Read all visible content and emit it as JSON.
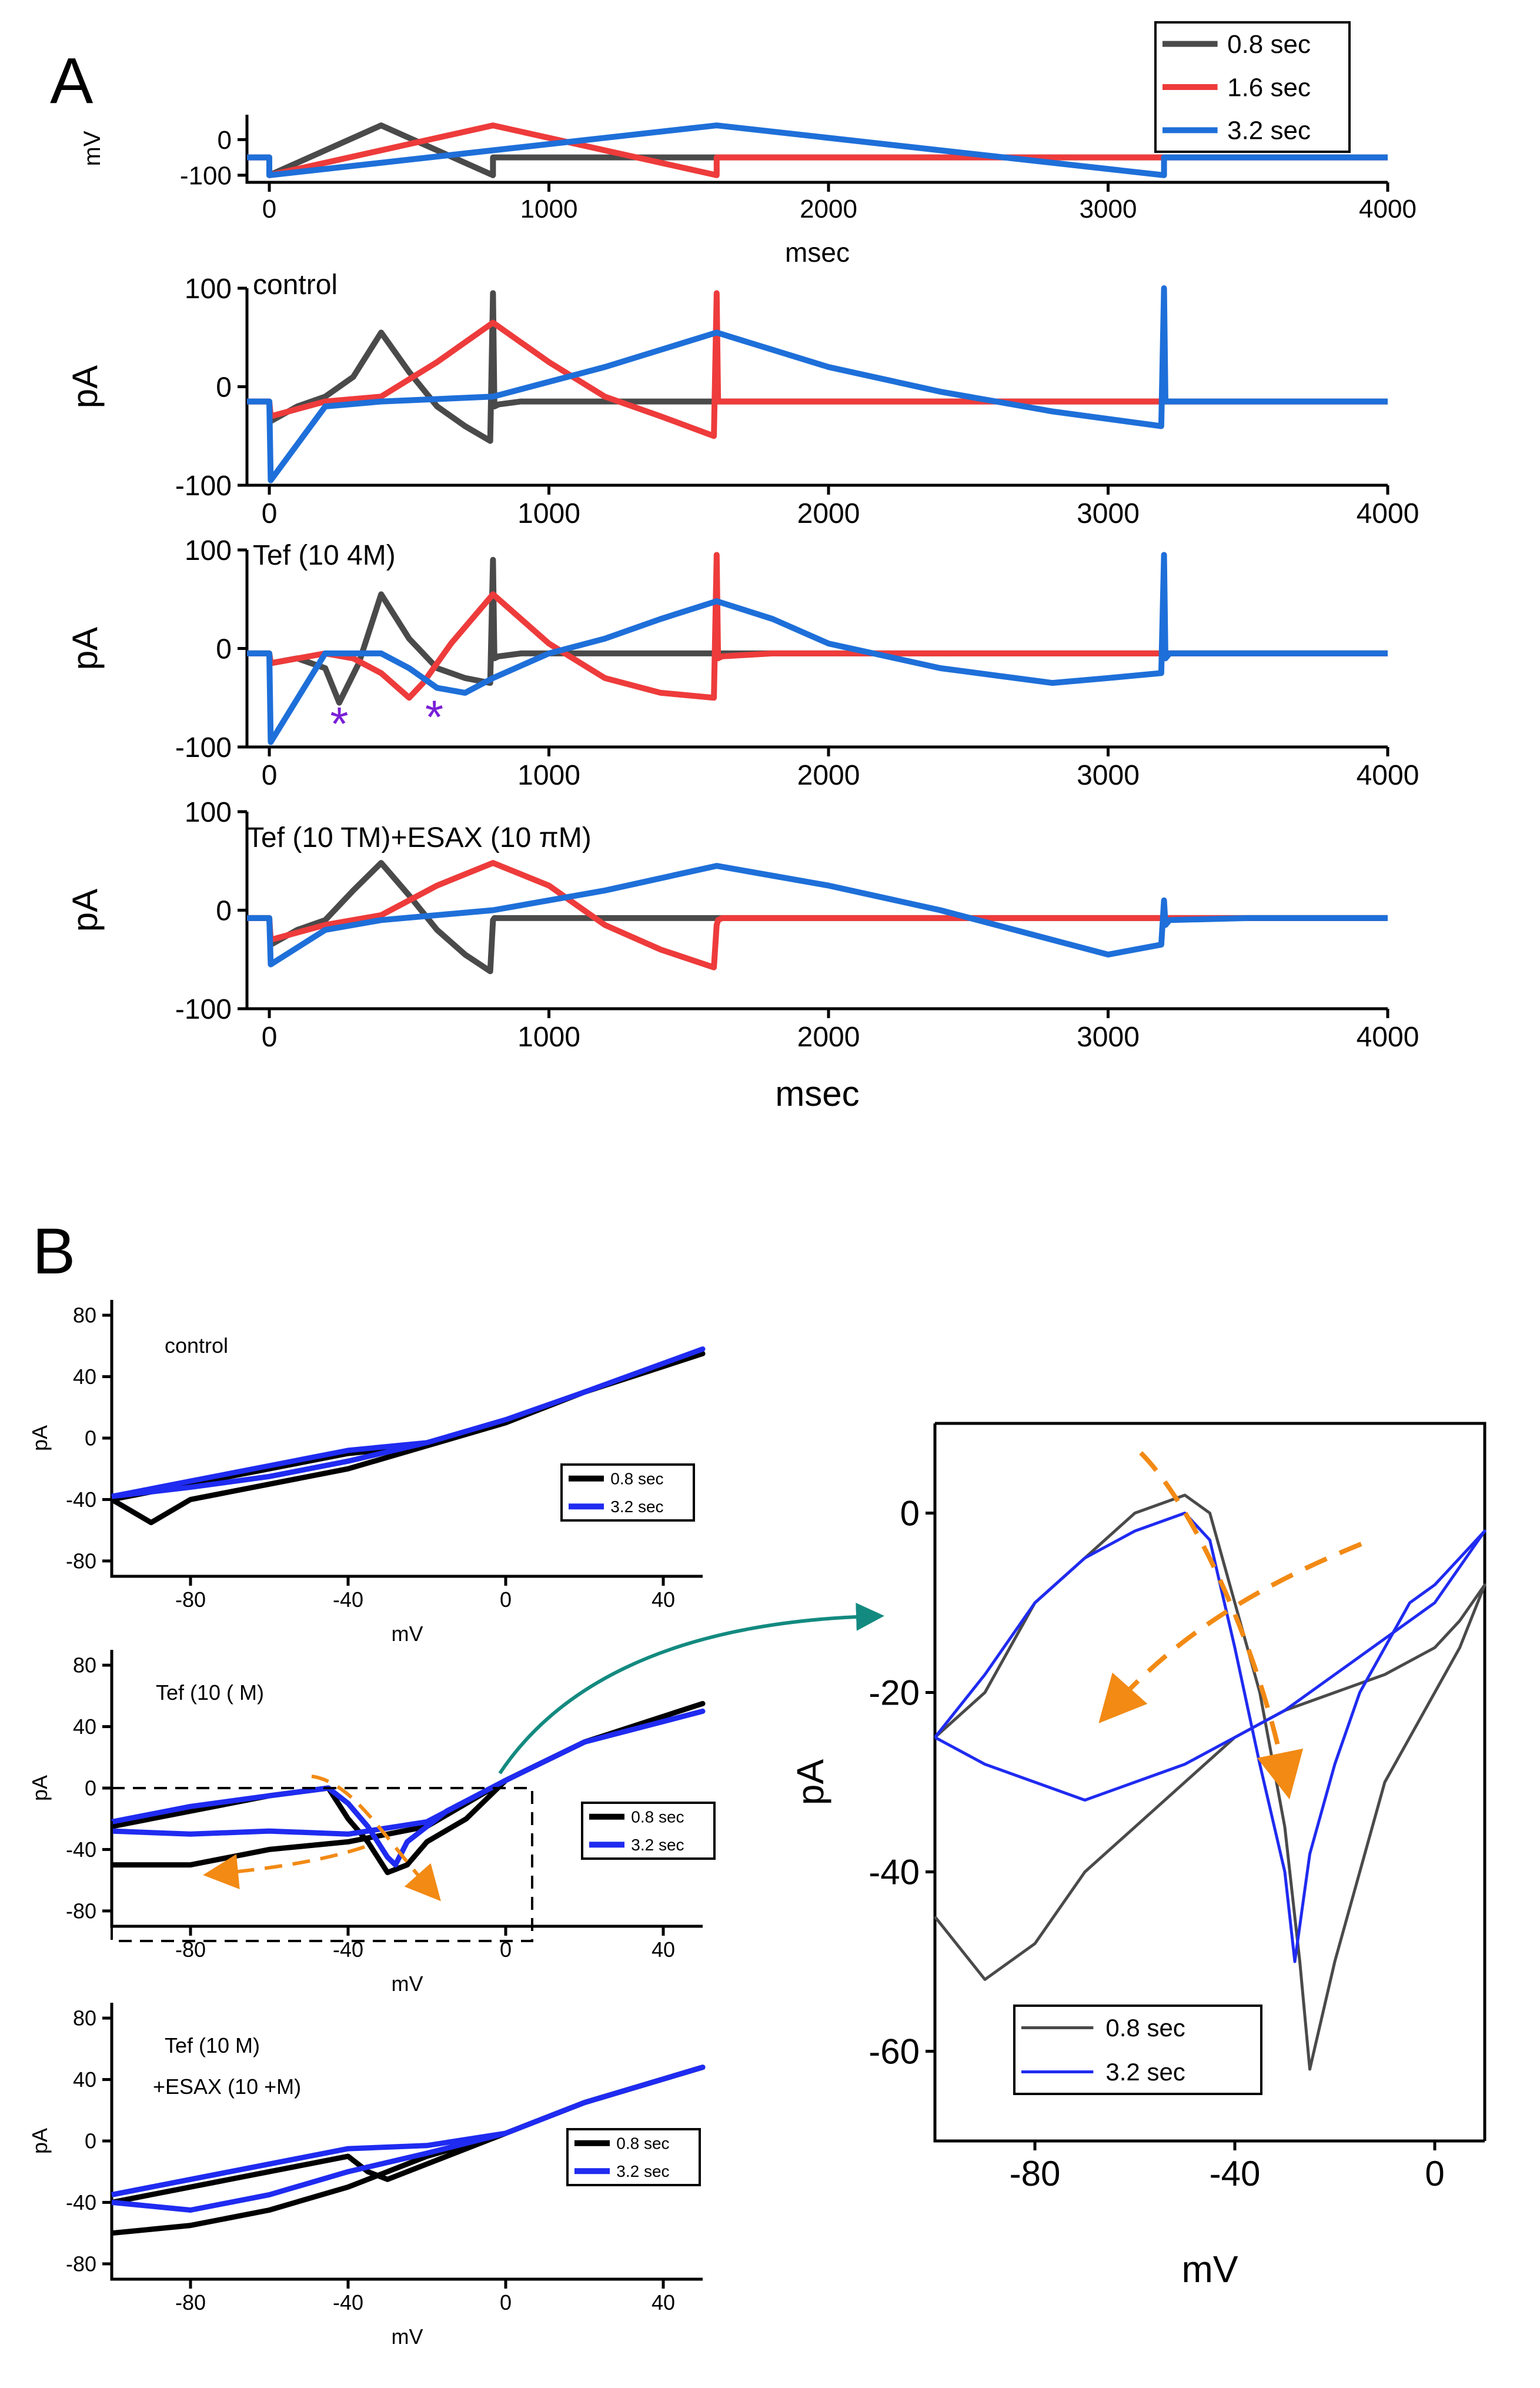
{
  "figure": {
    "panel_a_label": "A",
    "panel_b_label": "B",
    "colors": {
      "gray": "#4a4a4a",
      "red": "#ee3b3b",
      "blue": "#1e6fd9",
      "black": "#000000",
      "royal_blue": "#1f2bf0",
      "orange": "#f28a14",
      "teal": "#138a80",
      "purple": "#7a1fd6"
    }
  },
  "chart_data": [
    {
      "id": "A-voltage",
      "type": "line",
      "ylabel": "mV",
      "xlabel": "msec",
      "xlim": [
        -80,
        4000
      ],
      "ylim": [
        -120,
        70
      ],
      "xticks": [
        0,
        1000,
        2000,
        3000,
        4000
      ],
      "yticks": [
        0,
        -100
      ],
      "legend": {
        "placement": "top-right",
        "entries": [
          "0.8 sec",
          "1.6 sec",
          "3.2 sec"
        ]
      },
      "series": [
        {
          "name": "0.8 sec",
          "color": "gray",
          "x": [
            -80,
            0,
            0,
            400,
            800,
            800,
            4000
          ],
          "y": [
            -50,
            -50,
            -100,
            40,
            -100,
            -50,
            -50
          ]
        },
        {
          "name": "1.6 sec",
          "color": "red",
          "x": [
            -80,
            0,
            0,
            800,
            1600,
            1600,
            4000
          ],
          "y": [
            -50,
            -50,
            -100,
            40,
            -100,
            -50,
            -50
          ]
        },
        {
          "name": "3.2 sec",
          "color": "blue",
          "x": [
            -80,
            0,
            0,
            1600,
            3200,
            3200,
            4000
          ],
          "y": [
            -50,
            -50,
            -100,
            40,
            -100,
            -50,
            -50
          ]
        }
      ]
    },
    {
      "id": "A-control",
      "type": "line",
      "annotation": "control",
      "ylabel": "pA",
      "xlim": [
        -80,
        4000
      ],
      "ylim": [
        -100,
        100
      ],
      "xticks": [
        0,
        1000,
        2000,
        3000,
        4000
      ],
      "yticks": [
        100,
        0,
        -100
      ],
      "series": [
        {
          "name": "0.8 sec",
          "color": "gray",
          "x": [
            -80,
            0,
            5,
            100,
            200,
            300,
            400,
            500,
            600,
            700,
            790,
            800,
            805,
            820,
            900,
            1500,
            2000,
            3000,
            4000
          ],
          "y": [
            -15,
            -15,
            -35,
            -20,
            -10,
            10,
            55,
            15,
            -20,
            -40,
            -55,
            95,
            -20,
            -18,
            -15,
            -15,
            -15,
            -15,
            -15
          ]
        },
        {
          "name": "1.6 sec",
          "color": "red",
          "x": [
            -80,
            0,
            5,
            200,
            400,
            600,
            800,
            1000,
            1200,
            1400,
            1590,
            1600,
            1605,
            1620,
            1800,
            2500,
            3200,
            4000
          ],
          "y": [
            -15,
            -15,
            -30,
            -15,
            -10,
            25,
            65,
            25,
            -10,
            -30,
            -50,
            95,
            -15,
            -15,
            -15,
            -15,
            -15,
            -15
          ]
        },
        {
          "name": "3.2 sec",
          "color": "blue",
          "x": [
            -80,
            0,
            5,
            200,
            400,
            800,
            1200,
            1600,
            2000,
            2400,
            2800,
            3190,
            3200,
            3205,
            3220,
            3500,
            4000
          ],
          "y": [
            -15,
            -15,
            -95,
            -20,
            -15,
            -10,
            20,
            55,
            20,
            -5,
            -25,
            -40,
            100,
            -15,
            -15,
            -15,
            -15
          ]
        }
      ]
    },
    {
      "id": "A-tef",
      "type": "line",
      "annotation": "Tef (10 4M)",
      "ylabel": "pA",
      "xlim": [
        -80,
        4000
      ],
      "ylim": [
        -100,
        100
      ],
      "xticks": [
        0,
        1000,
        2000,
        3000,
        4000
      ],
      "yticks": [
        100,
        0,
        -100
      ],
      "markers": [
        {
          "text": "*",
          "x": 250,
          "y": -75
        },
        {
          "text": "*",
          "x": 590,
          "y": -68
        }
      ],
      "series": [
        {
          "name": "0.8 sec",
          "color": "gray",
          "x": [
            -80,
            0,
            5,
            100,
            200,
            250,
            320,
            400,
            500,
            600,
            700,
            790,
            800,
            805,
            820,
            900,
            1500,
            2000,
            3000,
            4000
          ],
          "y": [
            -5,
            -5,
            -15,
            -10,
            -20,
            -55,
            -15,
            55,
            10,
            -20,
            -30,
            -35,
            90,
            -10,
            -8,
            -5,
            -5,
            -5,
            -5,
            -5
          ]
        },
        {
          "name": "1.6 sec",
          "color": "red",
          "x": [
            -80,
            0,
            5,
            200,
            300,
            400,
            500,
            550,
            650,
            800,
            1000,
            1200,
            1400,
            1590,
            1600,
            1605,
            1620,
            1800,
            2500,
            3200,
            4000
          ],
          "y": [
            -5,
            -5,
            -15,
            -5,
            -10,
            -25,
            -50,
            -35,
            5,
            55,
            5,
            -30,
            -45,
            -50,
            95,
            -10,
            -8,
            -5,
            -5,
            -5,
            -5
          ]
        },
        {
          "name": "3.2 sec",
          "color": "blue",
          "x": [
            -80,
            0,
            5,
            200,
            400,
            500,
            600,
            700,
            800,
            1000,
            1200,
            1400,
            1600,
            1800,
            2000,
            2400,
            2800,
            3000,
            3190,
            3200,
            3205,
            3220,
            3500,
            4000
          ],
          "y": [
            -5,
            -5,
            -95,
            -5,
            -5,
            -20,
            -40,
            -45,
            -30,
            -5,
            10,
            30,
            48,
            30,
            5,
            -20,
            -35,
            -30,
            -25,
            95,
            -10,
            -5,
            -5,
            -5
          ]
        }
      ]
    },
    {
      "id": "A-tef-esax",
      "type": "line",
      "annotation": "Tef (10 TM)+ESAX (10 πM)",
      "ylabel": "pA",
      "xlabel": "msec",
      "xlim": [
        -80,
        4000
      ],
      "ylim": [
        -100,
        100
      ],
      "xticks": [
        0,
        1000,
        2000,
        3000,
        4000
      ],
      "yticks": [
        100,
        0,
        -100
      ],
      "series": [
        {
          "name": "0.8 sec",
          "color": "gray",
          "x": [
            -80,
            0,
            5,
            100,
            200,
            300,
            400,
            500,
            600,
            700,
            790,
            800,
            805,
            820,
            900,
            1500,
            2000,
            3000,
            4000
          ],
          "y": [
            -8,
            -8,
            -35,
            -20,
            -10,
            20,
            48,
            15,
            -20,
            -45,
            -62,
            -10,
            -8,
            -8,
            -8,
            -8,
            -8,
            -8,
            -8
          ]
        },
        {
          "name": "1.6 sec",
          "color": "red",
          "x": [
            -80,
            0,
            5,
            200,
            400,
            600,
            800,
            1000,
            1200,
            1400,
            1590,
            1600,
            1605,
            1620,
            1800,
            2500,
            3200,
            4000
          ],
          "y": [
            -8,
            -8,
            -30,
            -15,
            -5,
            25,
            48,
            25,
            -15,
            -40,
            -58,
            -15,
            -10,
            -8,
            -8,
            -8,
            -8,
            -8
          ]
        },
        {
          "name": "3.2 sec",
          "color": "blue",
          "x": [
            -80,
            0,
            5,
            200,
            400,
            800,
            1200,
            1600,
            2000,
            2400,
            2800,
            3000,
            3190,
            3200,
            3205,
            3220,
            3500,
            4000
          ],
          "y": [
            -8,
            -8,
            -55,
            -20,
            -10,
            0,
            20,
            45,
            25,
            0,
            -30,
            -45,
            -35,
            10,
            -15,
            -10,
            -8,
            -8
          ]
        }
      ]
    },
    {
      "id": "B-control",
      "type": "line",
      "annotation": "control",
      "ylabel": "pA",
      "xlabel": "mV",
      "xlim": [
        -100,
        50
      ],
      "ylim": [
        -90,
        90
      ],
      "xticks": [
        -80,
        -40,
        0,
        40
      ],
      "yticks": [
        80,
        40,
        0,
        -40,
        -80
      ],
      "legend": {
        "placement": "bottom-right",
        "entries": [
          "0.8 sec",
          "3.2 sec"
        ]
      },
      "series": [
        {
          "name": "0.8 sec",
          "color": "black",
          "x": [
            -100,
            -80,
            -60,
            -40,
            -20,
            0,
            20,
            50,
            20,
            0,
            -20,
            -40,
            -60,
            -80,
            -90,
            -100
          ],
          "y": [
            -40,
            -30,
            -20,
            -10,
            -5,
            10,
            30,
            55,
            30,
            10,
            -5,
            -20,
            -30,
            -40,
            -55,
            -40
          ]
        },
        {
          "name": "3.2 sec",
          "color": "royal_blue",
          "x": [
            -100,
            -80,
            -60,
            -40,
            -20,
            0,
            20,
            50,
            20,
            0,
            -20,
            -40,
            -60,
            -80,
            -100
          ],
          "y": [
            -38,
            -28,
            -18,
            -8,
            -3,
            12,
            30,
            58,
            30,
            12,
            -3,
            -15,
            -25,
            -32,
            -38
          ]
        }
      ]
    },
    {
      "id": "B-tef",
      "type": "line",
      "annotation": "Tef (10 ( M)",
      "ylabel": "pA",
      "xlabel": "mV",
      "xlim": [
        -100,
        50
      ],
      "ylim": [
        -90,
        90
      ],
      "xticks": [
        -80,
        -40,
        0,
        40
      ],
      "yticks": [
        80,
        40,
        0,
        -40,
        -80
      ],
      "legend": {
        "placement": "bottom-right",
        "entries": [
          "0.8 sec",
          "3.2 sec"
        ]
      },
      "series": [
        {
          "name": "0.8 sec",
          "color": "black",
          "x": [
            -100,
            -80,
            -60,
            -45,
            -40,
            -35,
            -30,
            -25,
            -20,
            -10,
            0,
            20,
            50,
            20,
            0,
            -20,
            -40,
            -60,
            -80,
            -100
          ],
          "y": [
            -25,
            -15,
            -5,
            0,
            -20,
            -35,
            -55,
            -50,
            -35,
            -20,
            5,
            30,
            55,
            30,
            5,
            -25,
            -35,
            -40,
            -50,
            -50
          ]
        },
        {
          "name": "3.2 sec",
          "color": "royal_blue",
          "x": [
            -100,
            -80,
            -60,
            -45,
            -40,
            -35,
            -30,
            -28,
            -25,
            -15,
            0,
            20,
            50,
            20,
            0,
            -20,
            -40,
            -60,
            -80,
            -100
          ],
          "y": [
            -22,
            -12,
            -5,
            0,
            -10,
            -25,
            -45,
            -50,
            -35,
            -15,
            5,
            30,
            50,
            30,
            5,
            -22,
            -30,
            -28,
            -30,
            -28
          ]
        }
      ]
    },
    {
      "id": "B-tef-esax",
      "type": "line",
      "annotation": "Tef (10   M)\n+ESAX (10 +M)",
      "ylabel": "pA",
      "xlabel": "mV",
      "xlim": [
        -100,
        50
      ],
      "ylim": [
        -90,
        90
      ],
      "xticks": [
        -80,
        -40,
        0,
        40
      ],
      "yticks": [
        80,
        40,
        0,
        -40,
        -80
      ],
      "legend": {
        "placement": "bottom-right",
        "entries": [
          "0.8 sec",
          "3.2 sec"
        ]
      },
      "series": [
        {
          "name": "0.8 sec",
          "color": "black",
          "x": [
            -100,
            -80,
            -60,
            -40,
            -35,
            -30,
            -20,
            0,
            20,
            50,
            20,
            0,
            -20,
            -40,
            -60,
            -80,
            -100
          ],
          "y": [
            -40,
            -30,
            -20,
            -10,
            -20,
            -25,
            -15,
            5,
            25,
            48,
            25,
            5,
            -10,
            -30,
            -45,
            -55,
            -60
          ]
        },
        {
          "name": "3.2 sec",
          "color": "royal_blue",
          "x": [
            -100,
            -80,
            -60,
            -40,
            -20,
            0,
            20,
            50,
            20,
            0,
            -20,
            -40,
            -60,
            -80,
            -100
          ],
          "y": [
            -35,
            -25,
            -15,
            -5,
            -3,
            5,
            25,
            48,
            25,
            5,
            -8,
            -20,
            -35,
            -45,
            -40
          ]
        }
      ]
    },
    {
      "id": "B-zoom",
      "type": "line",
      "ylabel": "pA",
      "xlabel": "mV",
      "xlim": [
        -100,
        10
      ],
      "ylim": [
        -70,
        10
      ],
      "xticks": [
        -80,
        -40,
        0
      ],
      "yticks": [
        0,
        -20,
        -40,
        -60
      ],
      "legend": {
        "placement": "bottom-left",
        "entries": [
          "0.8 sec",
          "3.2 sec"
        ]
      },
      "series": [
        {
          "name": "0.8 sec",
          "color": "gray",
          "x": [
            -100,
            -90,
            -80,
            -70,
            -60,
            -50,
            -45,
            -40,
            -35,
            -30,
            -27,
            -25,
            -20,
            -15,
            -10,
            -5,
            0,
            5,
            10,
            5,
            0,
            -10,
            -20,
            -30,
            -40,
            -50,
            -60,
            -70,
            -80,
            -90,
            -100
          ],
          "y": [
            -25,
            -20,
            -10,
            -5,
            0,
            2,
            0,
            -10,
            -20,
            -35,
            -50,
            -62,
            -50,
            -40,
            -30,
            -25,
            -20,
            -15,
            -8,
            -12,
            -15,
            -18,
            -20,
            -22,
            -25,
            -30,
            -35,
            -40,
            -48,
            -52,
            -45
          ]
        },
        {
          "name": "3.2 sec",
          "color": "royal_blue",
          "x": [
            -100,
            -90,
            -80,
            -70,
            -60,
            -50,
            -45,
            -40,
            -35,
            -30,
            -28,
            -25,
            -20,
            -15,
            -10,
            -5,
            0,
            5,
            10,
            5,
            0,
            -10,
            -20,
            -30,
            -40,
            -50,
            -60,
            -70,
            -80,
            -90,
            -100
          ],
          "y": [
            -25,
            -18,
            -10,
            -5,
            -2,
            0,
            -3,
            -15,
            -28,
            -40,
            -50,
            -38,
            -28,
            -20,
            -15,
            -10,
            -8,
            -5,
            -2,
            -6,
            -10,
            -14,
            -18,
            -22,
            -25,
            -28,
            -30,
            -32,
            -30,
            -28,
            -25
          ]
        }
      ]
    }
  ]
}
